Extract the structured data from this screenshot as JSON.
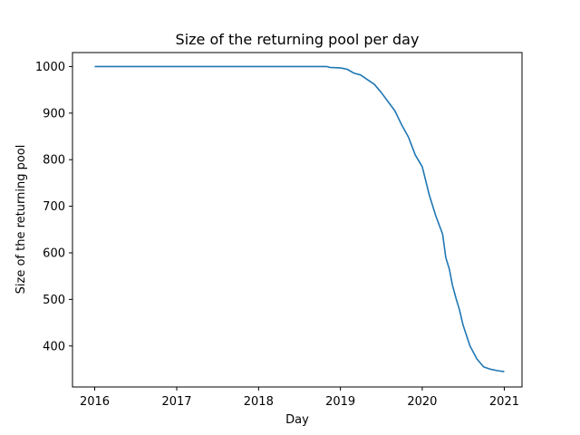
{
  "chart_data": {
    "type": "line",
    "title": "Size of the returning pool per day",
    "xlabel": "Day",
    "ylabel": "Size of the returning pool",
    "xlim": [
      "2015-09-24",
      "2021-03-21"
    ],
    "ylim": [
      312,
      1030
    ],
    "grid": false,
    "x_ticks": [
      "2016",
      "2017",
      "2018",
      "2019",
      "2020",
      "2021"
    ],
    "y_ticks": [
      400,
      500,
      600,
      700,
      800,
      900,
      1000
    ],
    "series": [
      {
        "color": "#1f77b4",
        "points": [
          [
            "2016-01-01",
            1000
          ],
          [
            "2017-01-01",
            1000
          ],
          [
            "2018-01-01",
            1000
          ],
          [
            "2018-11-01",
            1000
          ],
          [
            "2018-11-15",
            998
          ],
          [
            "2019-01-01",
            997
          ],
          [
            "2019-02-01",
            994
          ],
          [
            "2019-03-01",
            986
          ],
          [
            "2019-04-01",
            982
          ],
          [
            "2019-05-01",
            972
          ],
          [
            "2019-06-01",
            962
          ],
          [
            "2019-07-01",
            945
          ],
          [
            "2019-08-01",
            925
          ],
          [
            "2019-09-01",
            905
          ],
          [
            "2019-10-01",
            875
          ],
          [
            "2019-11-01",
            848
          ],
          [
            "2019-12-01",
            810
          ],
          [
            "2020-01-01",
            785
          ],
          [
            "2020-02-01",
            725
          ],
          [
            "2020-03-01",
            680
          ],
          [
            "2020-04-01",
            640
          ],
          [
            "2020-04-15",
            590
          ],
          [
            "2020-05-01",
            565
          ],
          [
            "2020-05-15",
            530
          ],
          [
            "2020-06-01",
            500
          ],
          [
            "2020-06-15",
            478
          ],
          [
            "2020-07-01",
            445
          ],
          [
            "2020-08-01",
            400
          ],
          [
            "2020-09-01",
            372
          ],
          [
            "2020-10-01",
            355
          ],
          [
            "2020-11-01",
            350
          ],
          [
            "2020-12-01",
            347
          ],
          [
            "2021-01-01",
            345
          ]
        ]
      }
    ]
  }
}
